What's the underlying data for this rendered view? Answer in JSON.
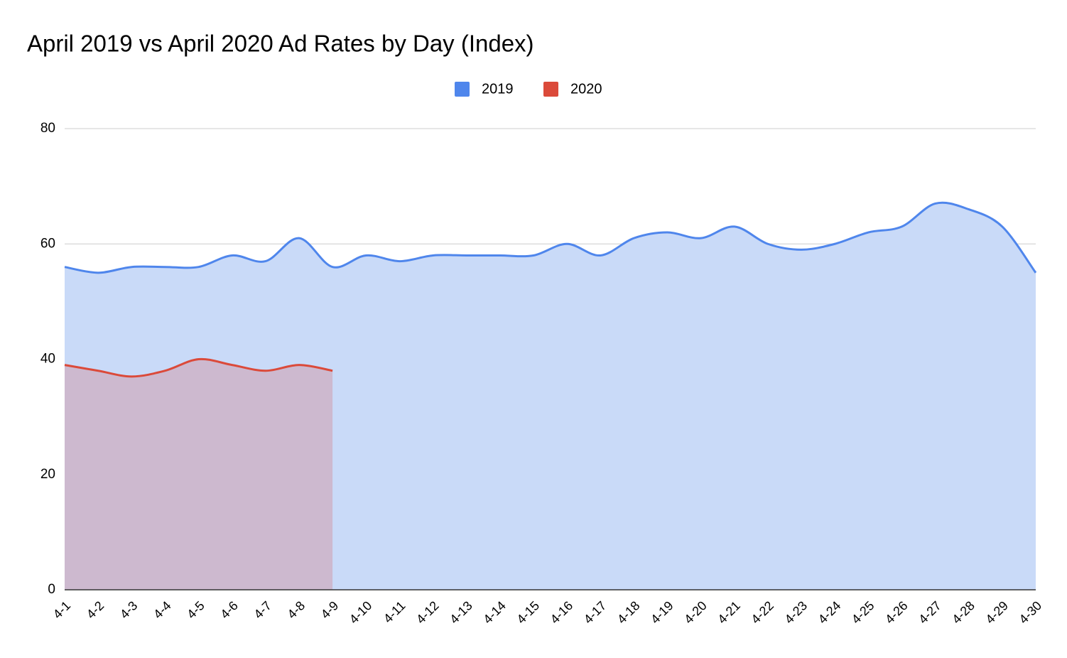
{
  "chart_data": {
    "type": "area",
    "title": "April 2019 vs April 2020 Ad Rates by Day (Index)",
    "categories": [
      "4-1",
      "4-2",
      "4-3",
      "4-4",
      "4-5",
      "4-6",
      "4-7",
      "4-8",
      "4-9",
      "4-10",
      "4-11",
      "4-12",
      "4-13",
      "4-14",
      "4-15",
      "4-16",
      "4-17",
      "4-18",
      "4-19",
      "4-20",
      "4-21",
      "4-22",
      "4-23",
      "4-24",
      "4-25",
      "4-26",
      "4-27",
      "4-28",
      "4-29",
      "4-30"
    ],
    "series": [
      {
        "name": "2019",
        "color": "#4f86ec",
        "fill": "#c9daf8",
        "values": [
          56,
          55,
          56,
          56,
          56,
          58,
          57,
          61,
          56,
          58,
          57,
          58,
          58,
          58,
          58,
          60,
          58,
          61,
          62,
          61,
          63,
          60,
          59,
          60,
          62,
          63,
          67,
          66,
          63,
          55
        ]
      },
      {
        "name": "2020",
        "color": "#db4a3a",
        "fill": "#cdadc1",
        "values": [
          39,
          38,
          37,
          38,
          40,
          39,
          38,
          39,
          38,
          null,
          null,
          null,
          null,
          null,
          null,
          null,
          null,
          null,
          null,
          null,
          null,
          null,
          null,
          null,
          null,
          null,
          null,
          null,
          null,
          null
        ]
      }
    ],
    "ylim": [
      0,
      80
    ],
    "yticks": [
      0,
      20,
      40,
      60,
      80
    ],
    "grid": true,
    "legend": "top"
  }
}
